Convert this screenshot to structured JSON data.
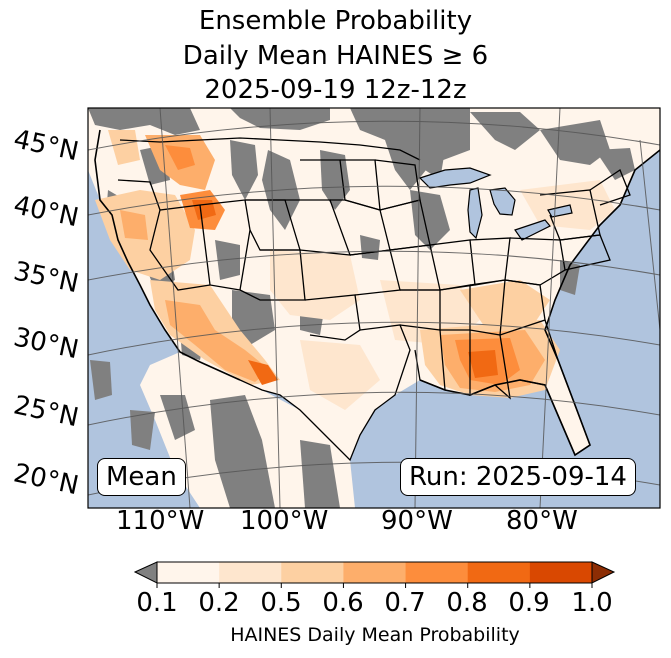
{
  "title": {
    "line1": "Ensemble Probability",
    "line2": "Daily Mean HAINES ≥ 6",
    "line3": "2025-09-19 12z-12z"
  },
  "map": {
    "lat_labels": [
      "45°N",
      "40°N",
      "35°N",
      "30°N",
      "25°N",
      "20°N"
    ],
    "lon_labels": [
      "110°W",
      "100°W",
      "90°W",
      "80°W"
    ],
    "stat_box": "Mean",
    "run_box": "Run: 2025-09-14",
    "colors": {
      "ocean": "#b0c4de",
      "missing": "#808080",
      "land_low": "#fff5eb"
    }
  },
  "colorbar": {
    "ticks": [
      "0.1",
      "0.2",
      "0.5",
      "0.6",
      "0.7",
      "0.8",
      "0.9",
      "1.0"
    ],
    "label": "HAINES Daily Mean Probability",
    "colors": [
      "#808080",
      "#fff5eb",
      "#fee6ce",
      "#fdd0a2",
      "#fdae6b",
      "#fd8d3c",
      "#f16913",
      "#d94801",
      "#8c2d04"
    ]
  }
}
